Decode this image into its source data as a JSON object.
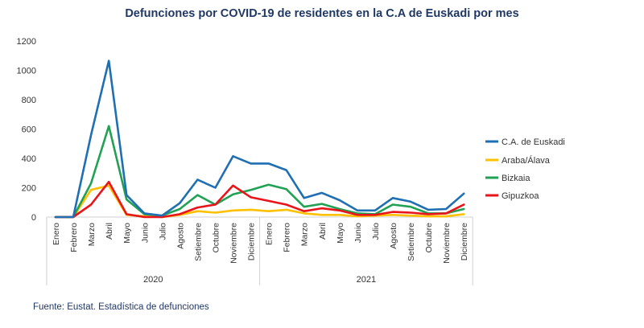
{
  "chart_data": {
    "type": "line",
    "title": "Defunciones por COVID-19  de residentes en la C.A de Euskadi por mes",
    "xlabel": "",
    "ylabel": "",
    "ylim": [
      0,
      1200
    ],
    "yticks": [
      0,
      200,
      400,
      600,
      800,
      1000,
      1200
    ],
    "grid": false,
    "legend_position": "right",
    "categories": [
      "Enero",
      "Febrero",
      "Marzo",
      "Abril",
      "Mayo",
      "Junio",
      "Julio",
      "Agosto",
      "Setiembre",
      "Octubre",
      "Noviembre",
      "Diciembre",
      "Enero",
      "Febrero",
      "Marzo",
      "Abril",
      "Mayo",
      "Junio",
      "Julio",
      "Agosto",
      "Setiembre",
      "Octubre",
      "Noviembre",
      "Diciembre"
    ],
    "groups": [
      {
        "label": "2020",
        "span": 12
      },
      {
        "label": "2021",
        "span": 12
      }
    ],
    "series": [
      {
        "name": "C.A. de Euskadi",
        "color": "#1f6fb2",
        "values": [
          0,
          0,
          560,
          1065,
          150,
          25,
          10,
          95,
          255,
          200,
          415,
          365,
          365,
          320,
          130,
          165,
          115,
          45,
          45,
          130,
          105,
          50,
          55,
          160
        ]
      },
      {
        "name": "Araba/Álava",
        "color": "#ffc000",
        "values": [
          0,
          0,
          185,
          215,
          15,
          5,
          0,
          15,
          40,
          30,
          45,
          50,
          40,
          50,
          25,
          15,
          15,
          5,
          10,
          15,
          10,
          5,
          5,
          20
        ]
      },
      {
        "name": "Bizkaia",
        "color": "#21a153",
        "values": [
          0,
          0,
          230,
          620,
          120,
          20,
          10,
          55,
          150,
          85,
          155,
          185,
          220,
          190,
          70,
          90,
          55,
          25,
          20,
          85,
          70,
          25,
          25,
          55
        ]
      },
      {
        "name": "Gipuzkoa",
        "color": "#e8141a",
        "values": [
          0,
          0,
          85,
          240,
          20,
          0,
          0,
          20,
          65,
          85,
          215,
          135,
          110,
          85,
          40,
          60,
          45,
          15,
          15,
          35,
          30,
          20,
          25,
          85
        ]
      }
    ]
  },
  "footer": {
    "source": "Fuente: Eustat. Estadística de defunciones"
  }
}
